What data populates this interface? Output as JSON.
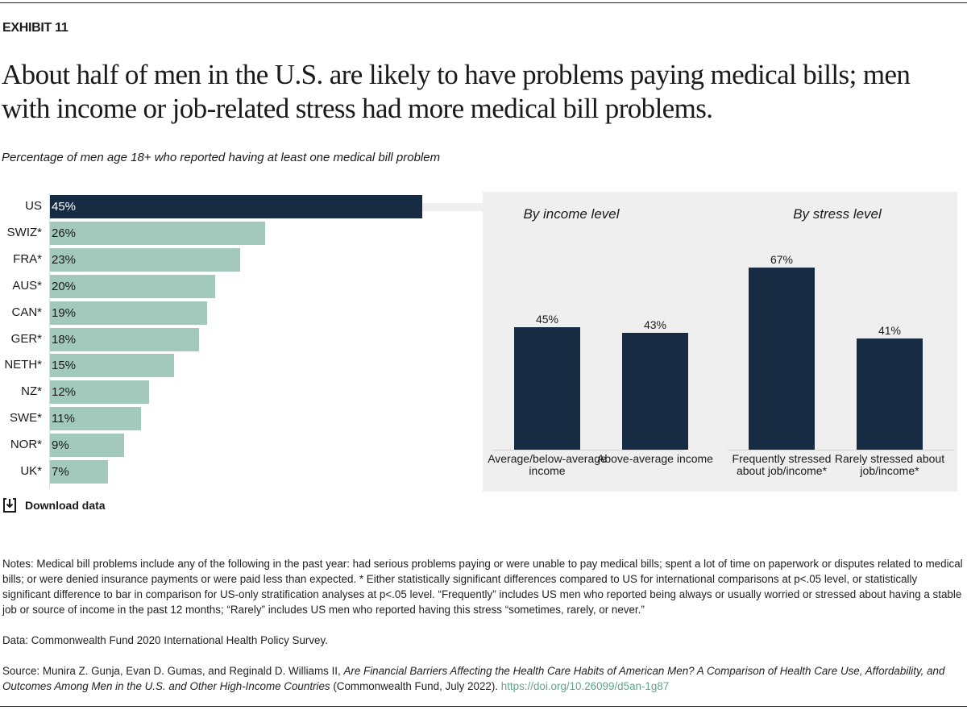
{
  "exhibit": "EXHIBIT 11",
  "title": "About half of men in the U.S. are likely to have problems paying medical bills; men with income or job-related stress had more medical bill problems.",
  "subtitle": "Percentage of men age 18+ who reported having at least one medical bill problem",
  "colors": {
    "us": "#172b42",
    "other": "#a3c9bc",
    "panel": "#efefef",
    "link": "#5fa58a"
  },
  "chart_data": [
    {
      "type": "bar",
      "orientation": "horizontal",
      "categories": [
        "US",
        "SWIZ*",
        "FRA*",
        "AUS*",
        "CAN*",
        "GER*",
        "NETH*",
        "NZ*",
        "SWE*",
        "NOR*",
        "UK*"
      ],
      "values": [
        45,
        26,
        23,
        20,
        19,
        18,
        15,
        12,
        11,
        9,
        7
      ],
      "labels": [
        "45%",
        "26%",
        "23%",
        "20%",
        "19%",
        "18%",
        "15%",
        "12%",
        "11%",
        "9%",
        "7%"
      ],
      "highlight": "US"
    },
    {
      "type": "bar",
      "title": "By income level",
      "categories": [
        "Average/below-average income",
        "Above-average income"
      ],
      "values": [
        45,
        43
      ],
      "labels": [
        "45%",
        "43%"
      ]
    },
    {
      "type": "bar",
      "title": "By stress level",
      "categories": [
        "Frequently stressed about job/income*",
        "Rarely stressed about job/income*"
      ],
      "values": [
        67,
        41
      ],
      "labels": [
        "67%",
        "41%"
      ]
    }
  ],
  "download_label": "Download data",
  "notes": "Notes: Medical bill problems include any of the following in the past year: had serious problems paying or were unable to pay medical bills; spent a lot of time on paperwork or disputes related to medical bills; or were denied insurance payments or were paid less than expected. * Either statistically significant differences compared to US for international comparisons at p<.05 level, or statistically significant difference to bar in comparison for US-only stratification analyses at p<.05 level. “Frequently” includes US men who reported being always or usually worried or stressed about having a stable job or source of income in the past 12 months; “Rarely” includes US men who reported having this stress “sometimes, rarely, or never.”",
  "data_note": "Data: Commonwealth Fund 2020 International Health Policy Survey.",
  "source": {
    "prefix": "Source: Munira Z. Gunja, Evan D. Gumas, and Reginald D. Williams II, ",
    "italic": "Are Financial Barriers Affecting the Health Care Habits of American Men? A Comparison of Health Care Use, Affordability, and Outcomes Among Men in the U.S. and Other High-Income Countries",
    "suffix": " (Commonwealth Fund, July 2022). ",
    "link": "https://doi.org/10.26099/d5an-1g87"
  }
}
